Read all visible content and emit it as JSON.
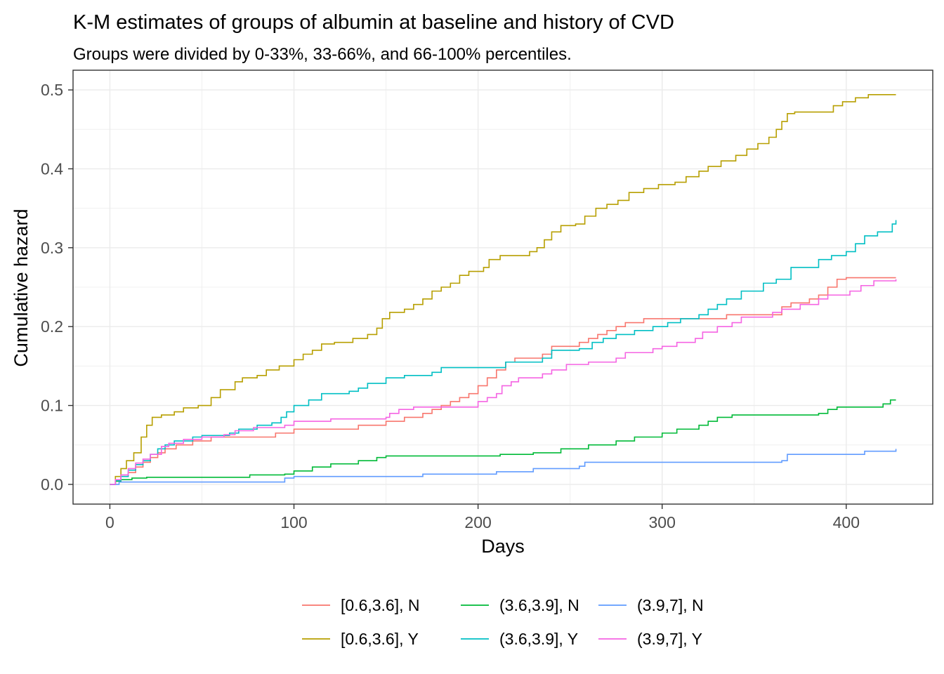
{
  "chart_data": {
    "type": "line",
    "step": true,
    "title": "K-M estimates of groups of albumin at baseline and history of CVD",
    "subtitle": "Groups were divided by 0-33%, 33-66%, and 66-100% percentiles.",
    "xlabel": "Days",
    "ylabel": "Cumulative hazard",
    "xlim": [
      -20,
      447
    ],
    "ylim": [
      -0.025,
      0.525
    ],
    "xticks": [
      0,
      100,
      200,
      300,
      400
    ],
    "xtick_labels": [
      "0",
      "100",
      "200",
      "300",
      "400"
    ],
    "yticks": [
      0.0,
      0.1,
      0.2,
      0.3,
      0.4,
      0.5
    ],
    "ytick_labels": [
      "0.0",
      "0.1",
      "0.2",
      "0.3",
      "0.4",
      "0.5"
    ],
    "grid": true,
    "legend_position": "bottom",
    "series": [
      {
        "name": "[0.6,3.6], N",
        "color": "#F8766D",
        "points": [
          [
            0,
            0
          ],
          [
            3,
            0.005
          ],
          [
            6,
            0.01
          ],
          [
            10,
            0.015
          ],
          [
            14,
            0.022
          ],
          [
            18,
            0.028
          ],
          [
            22,
            0.034
          ],
          [
            26,
            0.04
          ],
          [
            30,
            0.045
          ],
          [
            36,
            0.05
          ],
          [
            45,
            0.055
          ],
          [
            55,
            0.06
          ],
          [
            70,
            0.06
          ],
          [
            90,
            0.065
          ],
          [
            100,
            0.07
          ],
          [
            120,
            0.07
          ],
          [
            135,
            0.075
          ],
          [
            150,
            0.08
          ],
          [
            160,
            0.085
          ],
          [
            170,
            0.09
          ],
          [
            175,
            0.095
          ],
          [
            180,
            0.1
          ],
          [
            185,
            0.105
          ],
          [
            190,
            0.11
          ],
          [
            195,
            0.115
          ],
          [
            200,
            0.125
          ],
          [
            205,
            0.135
          ],
          [
            210,
            0.145
          ],
          [
            215,
            0.155
          ],
          [
            220,
            0.16
          ],
          [
            235,
            0.165
          ],
          [
            240,
            0.175
          ],
          [
            255,
            0.18
          ],
          [
            260,
            0.185
          ],
          [
            265,
            0.19
          ],
          [
            270,
            0.195
          ],
          [
            275,
            0.2
          ],
          [
            280,
            0.205
          ],
          [
            290,
            0.21
          ],
          [
            320,
            0.21
          ],
          [
            335,
            0.215
          ],
          [
            360,
            0.215
          ],
          [
            365,
            0.225
          ],
          [
            370,
            0.23
          ],
          [
            380,
            0.235
          ],
          [
            385,
            0.24
          ],
          [
            390,
            0.25
          ],
          [
            395,
            0.26
          ],
          [
            400,
            0.262
          ],
          [
            427,
            0.262
          ]
        ]
      },
      {
        "name": "[0.6,3.6], Y",
        "color": "#B79F00",
        "points": [
          [
            0,
            0
          ],
          [
            3,
            0.01
          ],
          [
            6,
            0.02
          ],
          [
            9,
            0.03
          ],
          [
            13,
            0.04
          ],
          [
            17,
            0.06
          ],
          [
            20,
            0.075
          ],
          [
            23,
            0.085
          ],
          [
            28,
            0.088
          ],
          [
            35,
            0.092
          ],
          [
            40,
            0.097
          ],
          [
            48,
            0.1
          ],
          [
            55,
            0.11
          ],
          [
            60,
            0.12
          ],
          [
            68,
            0.13
          ],
          [
            72,
            0.135
          ],
          [
            80,
            0.138
          ],
          [
            85,
            0.145
          ],
          [
            92,
            0.15
          ],
          [
            100,
            0.158
          ],
          [
            105,
            0.165
          ],
          [
            110,
            0.17
          ],
          [
            115,
            0.178
          ],
          [
            122,
            0.18
          ],
          [
            132,
            0.185
          ],
          [
            140,
            0.19
          ],
          [
            145,
            0.198
          ],
          [
            148,
            0.21
          ],
          [
            152,
            0.218
          ],
          [
            160,
            0.222
          ],
          [
            165,
            0.228
          ],
          [
            170,
            0.235
          ],
          [
            175,
            0.245
          ],
          [
            180,
            0.25
          ],
          [
            185,
            0.255
          ],
          [
            190,
            0.265
          ],
          [
            195,
            0.27
          ],
          [
            203,
            0.275
          ],
          [
            206,
            0.285
          ],
          [
            212,
            0.29
          ],
          [
            228,
            0.295
          ],
          [
            232,
            0.3
          ],
          [
            236,
            0.31
          ],
          [
            240,
            0.32
          ],
          [
            245,
            0.328
          ],
          [
            253,
            0.33
          ],
          [
            258,
            0.34
          ],
          [
            264,
            0.35
          ],
          [
            270,
            0.355
          ],
          [
            276,
            0.36
          ],
          [
            282,
            0.37
          ],
          [
            290,
            0.375
          ],
          [
            298,
            0.38
          ],
          [
            307,
            0.383
          ],
          [
            313,
            0.39
          ],
          [
            320,
            0.397
          ],
          [
            325,
            0.403
          ],
          [
            332,
            0.41
          ],
          [
            340,
            0.417
          ],
          [
            346,
            0.425
          ],
          [
            352,
            0.432
          ],
          [
            358,
            0.44
          ],
          [
            362,
            0.45
          ],
          [
            365,
            0.46
          ],
          [
            368,
            0.47
          ],
          [
            372,
            0.472
          ],
          [
            393,
            0.48
          ],
          [
            398,
            0.485
          ],
          [
            405,
            0.49
          ],
          [
            412,
            0.494
          ],
          [
            427,
            0.494
          ]
        ]
      },
      {
        "name": "(3.6,3.9], N",
        "color": "#00BA38",
        "points": [
          [
            0,
            0
          ],
          [
            3,
            0.004
          ],
          [
            6,
            0.006
          ],
          [
            12,
            0.008
          ],
          [
            20,
            0.009
          ],
          [
            75,
            0.009
          ],
          [
            76,
            0.012
          ],
          [
            95,
            0.013
          ],
          [
            100,
            0.017
          ],
          [
            110,
            0.022
          ],
          [
            120,
            0.026
          ],
          [
            135,
            0.03
          ],
          [
            145,
            0.034
          ],
          [
            150,
            0.036
          ],
          [
            205,
            0.036
          ],
          [
            212,
            0.038
          ],
          [
            230,
            0.04
          ],
          [
            245,
            0.045
          ],
          [
            260,
            0.05
          ],
          [
            275,
            0.055
          ],
          [
            285,
            0.06
          ],
          [
            300,
            0.065
          ],
          [
            308,
            0.07
          ],
          [
            320,
            0.075
          ],
          [
            325,
            0.08
          ],
          [
            330,
            0.085
          ],
          [
            338,
            0.088
          ],
          [
            385,
            0.09
          ],
          [
            390,
            0.095
          ],
          [
            395,
            0.098
          ],
          [
            420,
            0.102
          ],
          [
            424,
            0.107
          ],
          [
            427,
            0.107
          ]
        ]
      },
      {
        "name": "(3.6,3.9], Y",
        "color": "#00BFC4",
        "points": [
          [
            0,
            0
          ],
          [
            3,
            0.005
          ],
          [
            6,
            0.01
          ],
          [
            10,
            0.018
          ],
          [
            14,
            0.025
          ],
          [
            18,
            0.03
          ],
          [
            22,
            0.038
          ],
          [
            26,
            0.045
          ],
          [
            30,
            0.05
          ],
          [
            35,
            0.055
          ],
          [
            45,
            0.06
          ],
          [
            50,
            0.062
          ],
          [
            65,
            0.065
          ],
          [
            70,
            0.07
          ],
          [
            80,
            0.075
          ],
          [
            88,
            0.078
          ],
          [
            93,
            0.085
          ],
          [
            96,
            0.092
          ],
          [
            100,
            0.1
          ],
          [
            108,
            0.107
          ],
          [
            115,
            0.115
          ],
          [
            130,
            0.118
          ],
          [
            135,
            0.122
          ],
          [
            140,
            0.128
          ],
          [
            150,
            0.135
          ],
          [
            160,
            0.138
          ],
          [
            175,
            0.142
          ],
          [
            180,
            0.148
          ],
          [
            210,
            0.148
          ],
          [
            215,
            0.155
          ],
          [
            235,
            0.16
          ],
          [
            240,
            0.17
          ],
          [
            255,
            0.172
          ],
          [
            262,
            0.18
          ],
          [
            268,
            0.185
          ],
          [
            275,
            0.19
          ],
          [
            285,
            0.195
          ],
          [
            295,
            0.2
          ],
          [
            303,
            0.205
          ],
          [
            310,
            0.21
          ],
          [
            320,
            0.215
          ],
          [
            325,
            0.222
          ],
          [
            330,
            0.228
          ],
          [
            335,
            0.235
          ],
          [
            343,
            0.245
          ],
          [
            355,
            0.255
          ],
          [
            362,
            0.26
          ],
          [
            370,
            0.275
          ],
          [
            385,
            0.285
          ],
          [
            392,
            0.29
          ],
          [
            400,
            0.295
          ],
          [
            405,
            0.305
          ],
          [
            410,
            0.315
          ],
          [
            417,
            0.32
          ],
          [
            425,
            0.33
          ],
          [
            427,
            0.335
          ]
        ]
      },
      {
        "name": "(3.9,7], N",
        "color": "#619CFF",
        "points": [
          [
            0,
            0
          ],
          [
            5,
            0.003
          ],
          [
            60,
            0.003
          ],
          [
            95,
            0.008
          ],
          [
            100,
            0.01
          ],
          [
            165,
            0.01
          ],
          [
            170,
            0.013
          ],
          [
            210,
            0.016
          ],
          [
            230,
            0.02
          ],
          [
            255,
            0.023
          ],
          [
            258,
            0.028
          ],
          [
            365,
            0.03
          ],
          [
            368,
            0.038
          ],
          [
            410,
            0.042
          ],
          [
            427,
            0.045
          ]
        ]
      },
      {
        "name": "(3.9,7], Y",
        "color": "#F564E3",
        "points": [
          [
            0,
            0
          ],
          [
            3,
            0.006
          ],
          [
            6,
            0.012
          ],
          [
            10,
            0.02
          ],
          [
            14,
            0.027
          ],
          [
            18,
            0.032
          ],
          [
            22,
            0.038
          ],
          [
            28,
            0.048
          ],
          [
            32,
            0.052
          ],
          [
            40,
            0.057
          ],
          [
            50,
            0.06
          ],
          [
            62,
            0.063
          ],
          [
            68,
            0.068
          ],
          [
            78,
            0.072
          ],
          [
            95,
            0.075
          ],
          [
            100,
            0.08
          ],
          [
            115,
            0.08
          ],
          [
            120,
            0.083
          ],
          [
            150,
            0.085
          ],
          [
            152,
            0.09
          ],
          [
            157,
            0.095
          ],
          [
            165,
            0.098
          ],
          [
            200,
            0.105
          ],
          [
            205,
            0.11
          ],
          [
            210,
            0.115
          ],
          [
            213,
            0.125
          ],
          [
            218,
            0.13
          ],
          [
            222,
            0.135
          ],
          [
            235,
            0.14
          ],
          [
            240,
            0.145
          ],
          [
            248,
            0.152
          ],
          [
            260,
            0.155
          ],
          [
            275,
            0.16
          ],
          [
            280,
            0.167
          ],
          [
            295,
            0.172
          ],
          [
            300,
            0.175
          ],
          [
            308,
            0.18
          ],
          [
            318,
            0.185
          ],
          [
            322,
            0.193
          ],
          [
            330,
            0.2
          ],
          [
            338,
            0.205
          ],
          [
            343,
            0.212
          ],
          [
            355,
            0.212
          ],
          [
            360,
            0.218
          ],
          [
            365,
            0.222
          ],
          [
            375,
            0.228
          ],
          [
            385,
            0.235
          ],
          [
            390,
            0.24
          ],
          [
            402,
            0.245
          ],
          [
            408,
            0.252
          ],
          [
            415,
            0.258
          ],
          [
            427,
            0.26
          ]
        ]
      }
    ]
  }
}
